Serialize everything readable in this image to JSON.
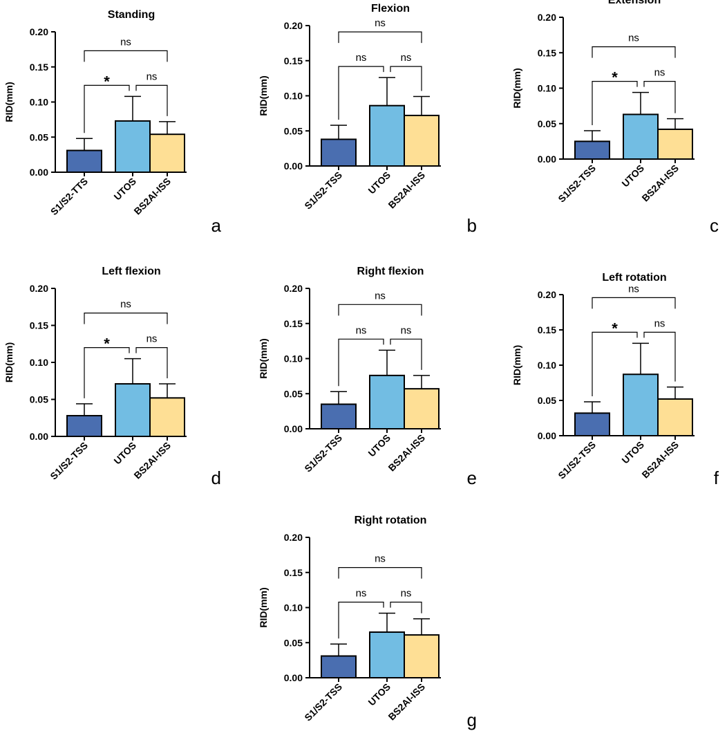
{
  "figure": {
    "colors": {
      "S1/S2": "#4A6EB0",
      "UTOS": "#72BDE3",
      "BS2AI-ISS": "#FEDF95"
    }
  },
  "chart_data": [
    {
      "panel_letter": "a",
      "type": "bar",
      "title": "Standing",
      "ylabel": "RID(mm)",
      "ylim": [
        0,
        0.2
      ],
      "yticks": [
        "0.00",
        "0.05",
        "0.10",
        "0.15",
        "0.20"
      ],
      "categories": [
        "S1/S2-TTS",
        "UTOS",
        "BS2AI-ISS"
      ],
      "values": [
        0.031,
        0.073,
        0.054
      ],
      "errors": [
        0.017,
        0.035,
        0.018
      ],
      "comparisons": [
        {
          "groups": [
            0,
            1
          ],
          "label": "*"
        },
        {
          "groups": [
            1,
            2
          ],
          "label": "ns"
        },
        {
          "groups": [
            0,
            2
          ],
          "label": "ns"
        }
      ]
    },
    {
      "panel_letter": "b",
      "type": "bar",
      "title": "Flexion",
      "ylabel": "RID(mm)",
      "ylim": [
        0,
        0.2
      ],
      "yticks": [
        "0.00",
        "0.05",
        "0.10",
        "0.15",
        "0.20"
      ],
      "categories": [
        "S1/S2-TSS",
        "UTOS",
        "BS2AI-ISS"
      ],
      "values": [
        0.038,
        0.086,
        0.072
      ],
      "errors": [
        0.02,
        0.04,
        0.027
      ],
      "comparisons": [
        {
          "groups": [
            0,
            1
          ],
          "label": "ns"
        },
        {
          "groups": [
            1,
            2
          ],
          "label": "ns"
        },
        {
          "groups": [
            0,
            2
          ],
          "label": "ns"
        }
      ]
    },
    {
      "panel_letter": "c",
      "type": "bar",
      "title": "Extension",
      "ylabel": "RID(mm)",
      "ylim": [
        0,
        0.2
      ],
      "yticks": [
        "0.00",
        "0.05",
        "0.10",
        "0.15",
        "0.20"
      ],
      "categories": [
        "S1/S2-TSS",
        "UTOS",
        "BS2AI-ISS"
      ],
      "values": [
        0.025,
        0.063,
        0.042
      ],
      "errors": [
        0.015,
        0.031,
        0.015
      ],
      "comparisons": [
        {
          "groups": [
            0,
            1
          ],
          "label": "*"
        },
        {
          "groups": [
            1,
            2
          ],
          "label": "ns"
        },
        {
          "groups": [
            0,
            2
          ],
          "label": "ns"
        }
      ]
    },
    {
      "panel_letter": "d",
      "type": "bar",
      "title": "Left flexion",
      "ylabel": "RID(mm)",
      "ylim": [
        0,
        0.2
      ],
      "yticks": [
        "0.00",
        "0.05",
        "0.10",
        "0.15",
        "0.20"
      ],
      "categories": [
        "S1/S2-TSS",
        "UTOS",
        "BS2AI-ISS"
      ],
      "values": [
        0.028,
        0.071,
        0.052
      ],
      "errors": [
        0.016,
        0.034,
        0.019
      ],
      "comparisons": [
        {
          "groups": [
            0,
            1
          ],
          "label": "*"
        },
        {
          "groups": [
            1,
            2
          ],
          "label": "ns"
        },
        {
          "groups": [
            0,
            2
          ],
          "label": "ns"
        }
      ]
    },
    {
      "panel_letter": "e",
      "type": "bar",
      "title": "Right flexion",
      "ylabel": "RID(mm)",
      "ylim": [
        0,
        0.2
      ],
      "yticks": [
        "0.00",
        "0.05",
        "0.10",
        "0.15",
        "0.20"
      ],
      "categories": [
        "S1/S2-TSS",
        "UTOS",
        "BS2AI-ISS"
      ],
      "values": [
        0.035,
        0.076,
        0.057
      ],
      "errors": [
        0.018,
        0.036,
        0.019
      ],
      "comparisons": [
        {
          "groups": [
            0,
            1
          ],
          "label": "ns"
        },
        {
          "groups": [
            1,
            2
          ],
          "label": "ns"
        },
        {
          "groups": [
            0,
            2
          ],
          "label": "ns"
        }
      ]
    },
    {
      "panel_letter": "f",
      "type": "bar",
      "title": "Left rotation",
      "ylabel": "RID(mm)",
      "ylim": [
        0,
        0.2
      ],
      "yticks": [
        "0.00",
        "0.05",
        "0.10",
        "0.15",
        "0.20"
      ],
      "categories": [
        "S1/S2-TSS",
        "UTOS",
        "BS2AI-ISS"
      ],
      "values": [
        0.032,
        0.087,
        0.052
      ],
      "errors": [
        0.016,
        0.044,
        0.017
      ],
      "comparisons": [
        {
          "groups": [
            0,
            1
          ],
          "label": "*"
        },
        {
          "groups": [
            1,
            2
          ],
          "label": "ns"
        },
        {
          "groups": [
            0,
            2
          ],
          "label": "ns"
        }
      ]
    },
    {
      "panel_letter": "g",
      "type": "bar",
      "title": "Right rotation",
      "ylabel": "RID(mm)",
      "ylim": [
        0,
        0.2
      ],
      "yticks": [
        "0.00",
        "0.05",
        "0.10",
        "0.15",
        "0.20"
      ],
      "categories": [
        "S1/S2-TSS",
        "UTOS",
        "BS2AI-ISS"
      ],
      "values": [
        0.031,
        0.065,
        0.061
      ],
      "errors": [
        0.017,
        0.027,
        0.023
      ],
      "comparisons": [
        {
          "groups": [
            0,
            1
          ],
          "label": "ns"
        },
        {
          "groups": [
            1,
            2
          ],
          "label": "ns"
        },
        {
          "groups": [
            0,
            2
          ],
          "label": "ns"
        }
      ]
    }
  ]
}
